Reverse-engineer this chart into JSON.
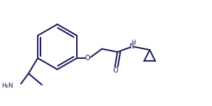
{
  "line_color": "#1a1a5e",
  "background_color": "#ffffff",
  "line_width": 1.5,
  "figsize": [
    3.09,
    1.55
  ],
  "dpi": 100,
  "xlim": [
    0,
    10
  ],
  "ylim": [
    0,
    5
  ]
}
